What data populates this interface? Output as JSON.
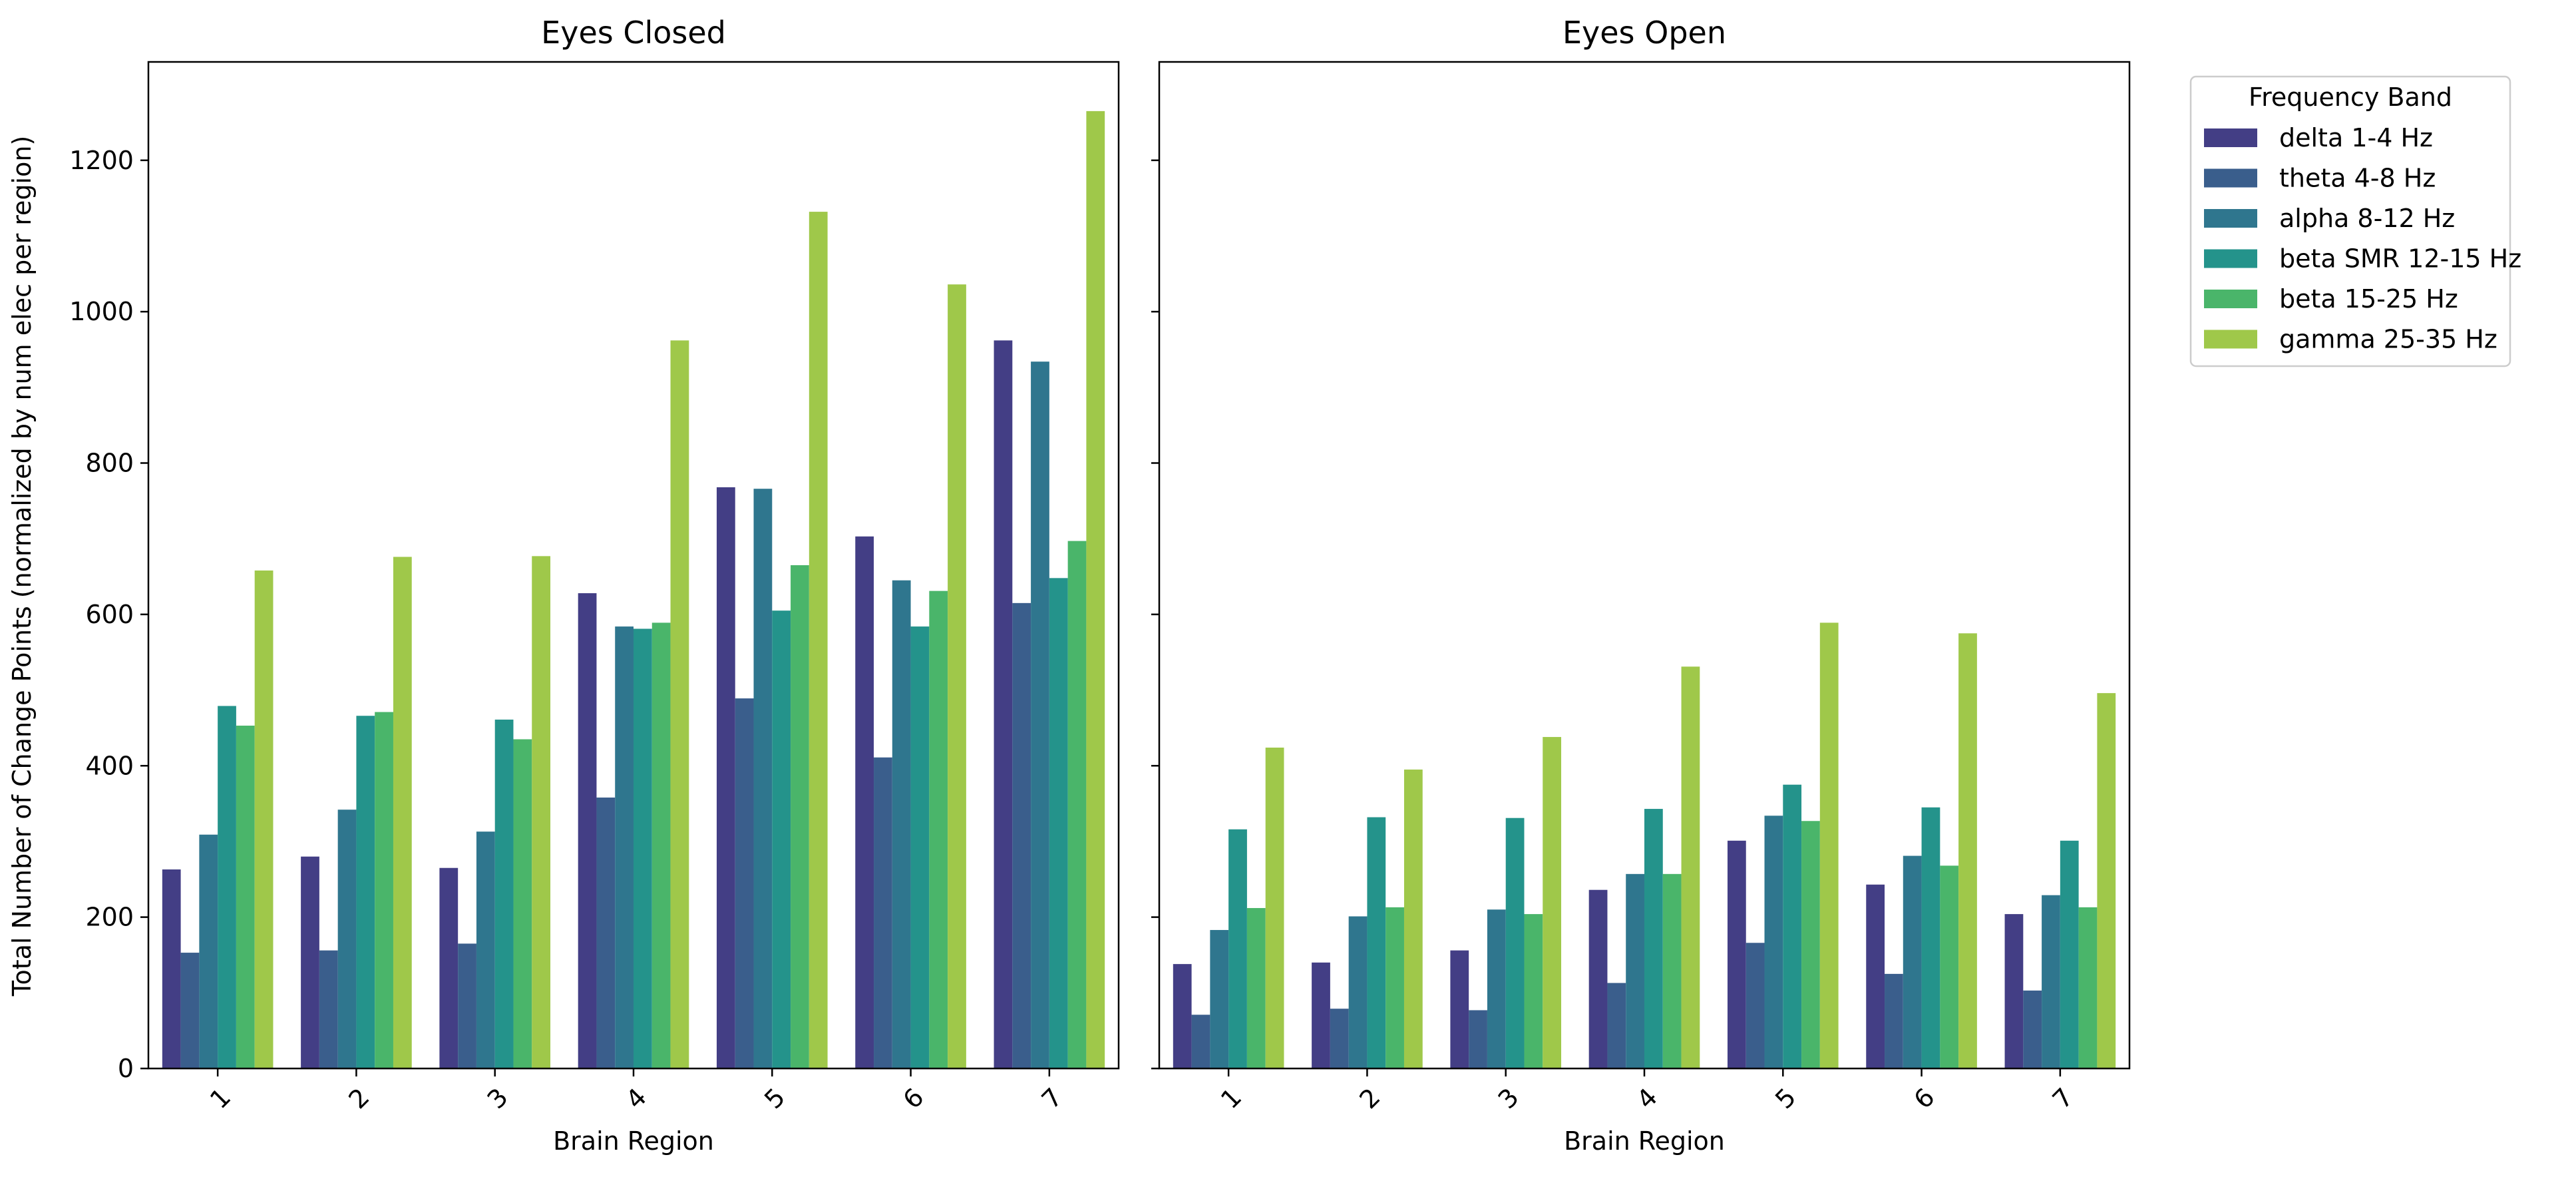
{
  "chart_data": {
    "type": "bar",
    "categories": [
      "1",
      "2",
      "3",
      "4",
      "5",
      "6",
      "7"
    ],
    "xlabel": "Brain Region",
    "ylabel": "Total Number of Change Points (normalized by num elec per region)",
    "ylim": [
      0,
      1330
    ],
    "yticks": [
      0,
      200,
      400,
      600,
      800,
      1000,
      1200
    ],
    "grid": false,
    "legend": {
      "title": "Frequency Band",
      "position": "outside-top-right",
      "entries": [
        "delta 1-4 Hz",
        "theta 4-8 Hz",
        "alpha 8-12 Hz",
        "beta SMR 12-15 Hz",
        "beta 15-25 Hz",
        "gamma 25-35 Hz"
      ]
    },
    "colors": [
      "#433e85",
      "#3a5e8c",
      "#2f768e",
      "#24938b",
      "#4ab56a",
      "#9fc84a"
    ],
    "panels": [
      {
        "title": "Eyes Closed",
        "series": [
          {
            "name": "delta 1-4 Hz",
            "values": [
              263,
              280,
              265,
              628,
              768,
              703,
              962
            ]
          },
          {
            "name": "theta 4-8 Hz",
            "values": [
              153,
              156,
              165,
              358,
              489,
              411,
              615
            ]
          },
          {
            "name": "alpha 8-12 Hz",
            "values": [
              309,
              342,
              313,
              584,
              766,
              645,
              934
            ]
          },
          {
            "name": "beta SMR 12-15 Hz",
            "values": [
              479,
              466,
              461,
              581,
              605,
              584,
              648
            ]
          },
          {
            "name": "beta 15-25 Hz",
            "values": [
              453,
              471,
              435,
              589,
              665,
              631,
              697
            ]
          },
          {
            "name": "gamma 25-35 Hz",
            "values": [
              658,
              676,
              677,
              962,
              1132,
              1036,
              1265
            ]
          }
        ]
      },
      {
        "title": "Eyes Open",
        "series": [
          {
            "name": "delta 1-4 Hz",
            "values": [
              138,
              140,
              156,
              236,
              301,
              243,
              204
            ]
          },
          {
            "name": "theta 4-8 Hz",
            "values": [
              71,
              79,
              77,
              113,
              166,
              125,
              103
            ]
          },
          {
            "name": "alpha 8-12 Hz",
            "values": [
              183,
              201,
              210,
              257,
              334,
              281,
              229
            ]
          },
          {
            "name": "beta SMR 12-15 Hz",
            "values": [
              316,
              332,
              331,
              343,
              375,
              345,
              301
            ]
          },
          {
            "name": "beta 15-25 Hz",
            "values": [
              212,
              213,
              204,
              257,
              327,
              268,
              213
            ]
          },
          {
            "name": "gamma 25-35 Hz",
            "values": [
              424,
              395,
              438,
              531,
              589,
              575,
              496
            ]
          }
        ]
      }
    ]
  }
}
